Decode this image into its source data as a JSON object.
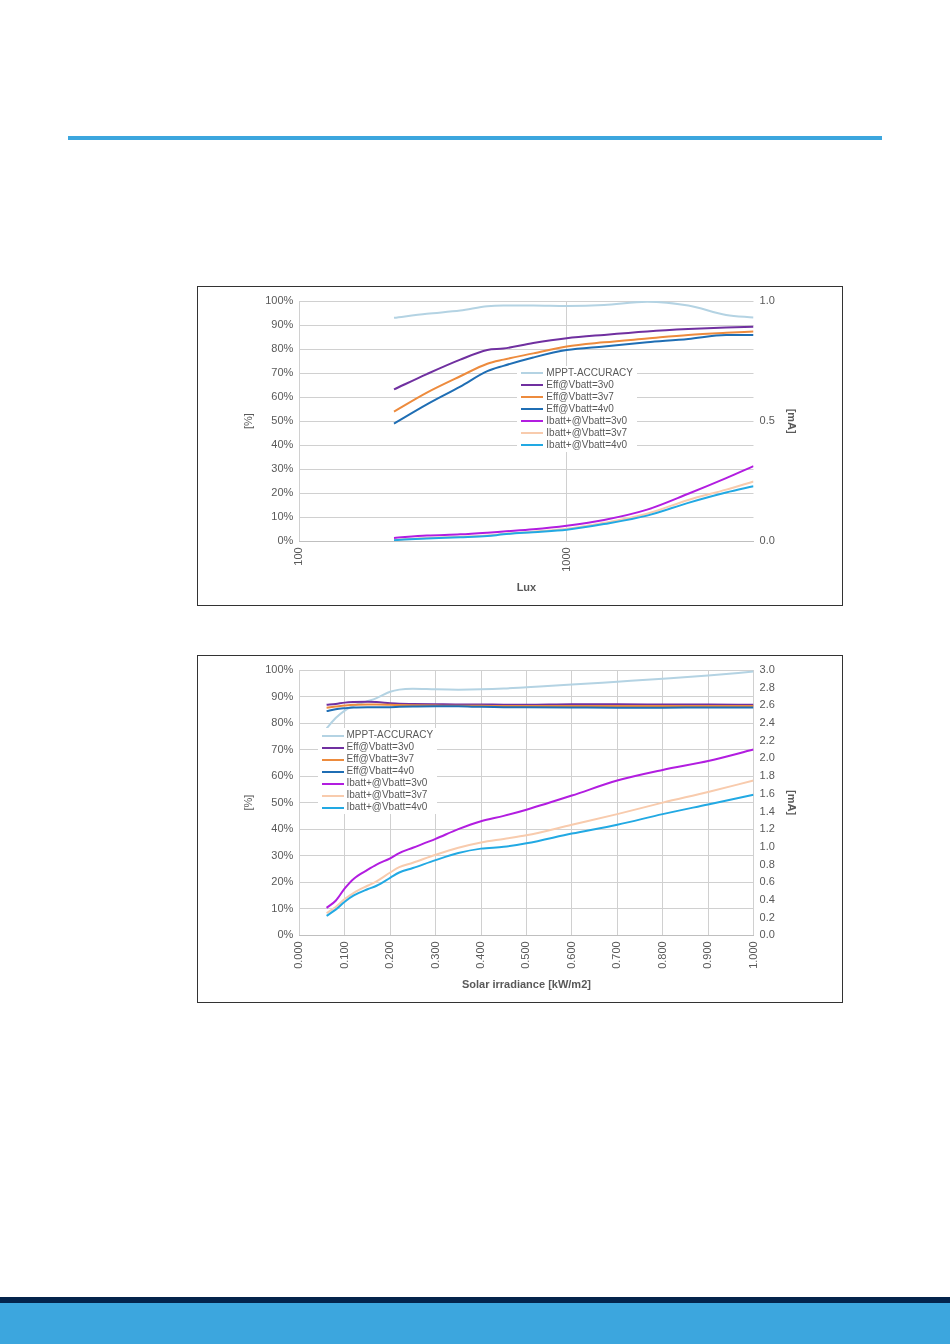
{
  "chart_data": [
    {
      "type": "line",
      "xlabel": "Lux",
      "ylabel": "[%]",
      "y2label": "[mA]",
      "log": "x",
      "grid": true,
      "legend": "center",
      "marker": "none",
      "line_style": "solid",
      "x": [
        226,
        300,
        400,
        505,
        580,
        750,
        1000,
        1380,
        2000,
        2850,
        3950,
        5000
      ],
      "xlim": [
        100,
        5000
      ],
      "xticks": [
        100,
        1000
      ],
      "ylim": [
        0,
        100
      ],
      "yticks": [
        {
          "value": 0,
          "label": "0%"
        },
        {
          "value": 10,
          "label": "10%"
        },
        {
          "value": 20,
          "label": "20%"
        },
        {
          "value": 30,
          "label": "30%"
        },
        {
          "value": 40,
          "label": "40%"
        },
        {
          "value": 50,
          "label": "50%"
        },
        {
          "value": 60,
          "label": "60%"
        },
        {
          "value": 70,
          "label": "70%"
        },
        {
          "value": 80,
          "label": "80%"
        },
        {
          "value": 90,
          "label": "90%"
        },
        {
          "value": 100,
          "label": "100%"
        }
      ],
      "y2lim": [
        0,
        1
      ],
      "y2ticks": [
        {
          "value": 0,
          "label": "0.0"
        },
        {
          "value": 0.5,
          "label": "0.5"
        },
        {
          "value": 1,
          "label": "1.0"
        }
      ],
      "series": [
        {
          "name": "MPPT-ACCURACY",
          "color": "#b4d3e3",
          "values": [
            93.0,
            94.7,
            96.0,
            97.8,
            98.1,
            98.1,
            97.9,
            98.3,
            99.7,
            98.1,
            94.2,
            93.1
          ]
        },
        {
          "name": "Eff@Vbatt=3v0",
          "color": "#7030a0",
          "values": [
            63.2,
            69.6,
            75.6,
            79.6,
            80.2,
            82.5,
            84.5,
            85.9,
            87.3,
            88.3,
            89.0,
            89.3
          ]
        },
        {
          "name": "Eff@Vbatt=3v7",
          "color": "#ed8b3d",
          "values": [
            54.0,
            61.9,
            68.7,
            73.9,
            75.6,
            78.2,
            81.1,
            82.8,
            84.4,
            85.9,
            86.8,
            87.3
          ]
        },
        {
          "name": "Eff@Vbatt=4v0",
          "color": "#1f6eb4",
          "values": [
            49.0,
            57.0,
            64.4,
            70.8,
            73.0,
            76.5,
            79.6,
            81.1,
            82.8,
            84.2,
            85.9,
            85.9
          ]
        },
        {
          "name": "Ibatt+@Vbatt=3v0",
          "color": "#b21de0",
          "axis": "y2",
          "values": [
            0.014,
            0.024,
            0.029,
            0.036,
            0.041,
            0.05,
            0.065,
            0.089,
            0.132,
            0.198,
            0.263,
            0.313
          ]
        },
        {
          "name": "Ibatt+@Vbatt=3v7",
          "color": "#f8cbad",
          "axis": "y2",
          "values": [
            0.005,
            0.014,
            0.019,
            0.024,
            0.031,
            0.04,
            0.052,
            0.077,
            0.115,
            0.172,
            0.215,
            0.249
          ]
        },
        {
          "name": "Ibatt+@Vbatt=4v0",
          "color": "#22a9e3",
          "axis": "y2",
          "values": [
            0.005,
            0.012,
            0.017,
            0.022,
            0.029,
            0.038,
            0.048,
            0.072,
            0.107,
            0.16,
            0.203,
            0.229
          ]
        }
      ]
    },
    {
      "type": "line",
      "xlabel": "Solar irradiance [kW/m2]",
      "ylabel": "[%]",
      "y2label": "[mA]",
      "grid": true,
      "legend": "left",
      "marker": "none",
      "line_style": "solid",
      "x": [
        0.06,
        0.08,
        0.1,
        0.12,
        0.15,
        0.17,
        0.2,
        0.22,
        0.25,
        0.3,
        0.35,
        0.4,
        0.45,
        0.5,
        0.6,
        0.7,
        0.8,
        0.9,
        1.0
      ],
      "xlim": [
        0,
        1
      ],
      "xticks": [
        {
          "value": 0,
          "label": "0.000"
        },
        {
          "value": 0.1,
          "label": "0.100"
        },
        {
          "value": 0.2,
          "label": "0.200"
        },
        {
          "value": 0.3,
          "label": "0.300"
        },
        {
          "value": 0.4,
          "label": "0.400"
        },
        {
          "value": 0.5,
          "label": "0.500"
        },
        {
          "value": 0.6,
          "label": "0.600"
        },
        {
          "value": 0.7,
          "label": "0.700"
        },
        {
          "value": 0.8,
          "label": "0.800"
        },
        {
          "value": 0.9,
          "label": "0.900"
        },
        {
          "value": 1,
          "label": "1.000"
        }
      ],
      "ylim": [
        0,
        100
      ],
      "yticks": [
        {
          "value": 0,
          "label": "0%"
        },
        {
          "value": 10,
          "label": "10%"
        },
        {
          "value": 20,
          "label": "20%"
        },
        {
          "value": 30,
          "label": "30%"
        },
        {
          "value": 40,
          "label": "40%"
        },
        {
          "value": 50,
          "label": "50%"
        },
        {
          "value": 60,
          "label": "60%"
        },
        {
          "value": 70,
          "label": "70%"
        },
        {
          "value": 80,
          "label": "80%"
        },
        {
          "value": 90,
          "label": "90%"
        },
        {
          "value": 100,
          "label": "100%"
        }
      ],
      "y2lim": [
        0,
        3
      ],
      "y2ticks": [
        {
          "value": 0,
          "label": "0.0"
        },
        {
          "value": 0.2,
          "label": "0.2"
        },
        {
          "value": 0.4,
          "label": "0.4"
        },
        {
          "value": 0.6,
          "label": "0.6"
        },
        {
          "value": 0.8,
          "label": "0.8"
        },
        {
          "value": 1,
          "label": "1.0"
        },
        {
          "value": 1.2,
          "label": "1.2"
        },
        {
          "value": 1.4,
          "label": "1.4"
        },
        {
          "value": 1.6,
          "label": "1.6"
        },
        {
          "value": 1.8,
          "label": "1.8"
        },
        {
          "value": 2,
          "label": "2.0"
        },
        {
          "value": 2.2,
          "label": "2.2"
        },
        {
          "value": 2.4,
          "label": "2.4"
        },
        {
          "value": 2.6,
          "label": "2.6"
        },
        {
          "value": 2.8,
          "label": "2.8"
        },
        {
          "value": 3,
          "label": "3.0"
        }
      ],
      "series": [
        {
          "name": "MPPT-ACCURACY",
          "color": "#b4d3e3",
          "values": [
            78.0,
            81.9,
            84.7,
            86.6,
            88.2,
            89.4,
            91.8,
            92.6,
            92.9,
            92.7,
            92.6,
            92.7,
            93.0,
            93.5,
            94.5,
            95.6,
            96.7,
            97.9,
            99.4
          ]
        },
        {
          "name": "Eff@Vbatt=3v0",
          "color": "#7030a0",
          "values": [
            86.9,
            87.2,
            87.7,
            87.9,
            88.0,
            87.9,
            87.5,
            87.3,
            87.2,
            87.1,
            87.0,
            87.0,
            86.9,
            86.9,
            87.1,
            87.1,
            87.0,
            87.0,
            86.9
          ]
        },
        {
          "name": "Eff@Vbatt=3v7",
          "color": "#ed8b3d",
          "values": [
            85.8,
            86.2,
            86.6,
            86.9,
            87.0,
            87.0,
            86.9,
            86.8,
            86.7,
            86.6,
            86.5,
            86.5,
            86.4,
            86.4,
            86.4,
            86.4,
            86.4,
            86.4,
            86.4
          ]
        },
        {
          "name": "Eff@Vbatt=4v0",
          "color": "#1f6eb4",
          "values": [
            84.5,
            85.2,
            85.6,
            85.9,
            86.0,
            86.0,
            86.0,
            86.1,
            86.2,
            86.3,
            86.3,
            86.1,
            86.0,
            86.0,
            85.9,
            85.8,
            85.8,
            85.9,
            85.9
          ]
        },
        {
          "name": "Ibatt+@Vbatt=3v0",
          "color": "#b21de0",
          "axis": "y2",
          "values": [
            0.31,
            0.39,
            0.53,
            0.64,
            0.74,
            0.8,
            0.87,
            0.93,
            0.99,
            1.09,
            1.2,
            1.29,
            1.35,
            1.42,
            1.58,
            1.75,
            1.87,
            1.97,
            2.1
          ]
        },
        {
          "name": "Ibatt+@Vbatt=3v7",
          "color": "#f8cbad",
          "axis": "y2",
          "values": [
            0.25,
            0.32,
            0.41,
            0.48,
            0.56,
            0.61,
            0.71,
            0.77,
            0.82,
            0.91,
            0.99,
            1.05,
            1.09,
            1.13,
            1.25,
            1.37,
            1.5,
            1.62,
            1.75
          ]
        },
        {
          "name": "Ibatt+@Vbatt=4v0",
          "color": "#22a9e3",
          "axis": "y2",
          "values": [
            0.22,
            0.29,
            0.38,
            0.45,
            0.52,
            0.56,
            0.65,
            0.71,
            0.76,
            0.85,
            0.93,
            0.98,
            1.0,
            1.04,
            1.15,
            1.25,
            1.37,
            1.48,
            1.59
          ]
        }
      ]
    }
  ]
}
